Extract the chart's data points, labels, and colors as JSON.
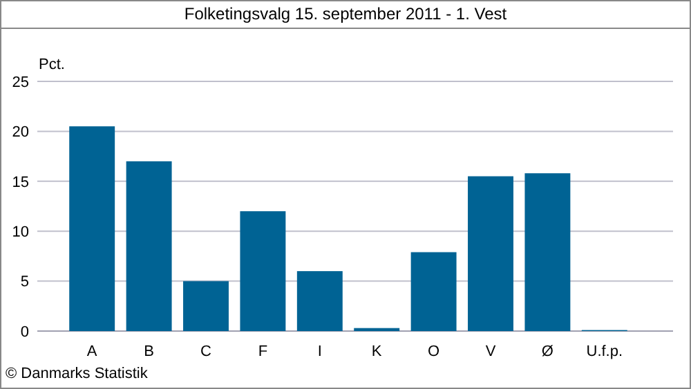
{
  "chart_data": {
    "type": "bar",
    "title": "Folketingsvalg 15. september 2011 - 1. Vest",
    "ylabel": "Pct.",
    "categories": [
      "A",
      "B",
      "C",
      "F",
      "I",
      "K",
      "O",
      "V",
      "Ø",
      "U.f.p."
    ],
    "values": [
      20.5,
      17.0,
      5.0,
      12.0,
      6.0,
      0.3,
      7.9,
      15.5,
      15.8,
      0.1
    ],
    "color": "#006394",
    "ylim": [
      0,
      25
    ],
    "yticks": [
      0,
      5,
      10,
      15,
      20,
      25
    ],
    "grid": "y",
    "annotations": [
      "© Danmarks Statistik"
    ]
  }
}
